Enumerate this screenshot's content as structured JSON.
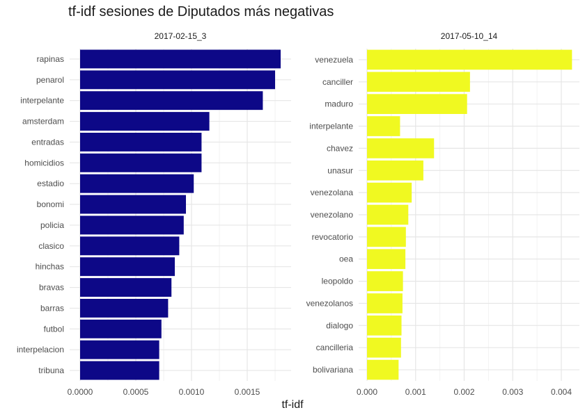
{
  "chart_data": {
    "type": "bar",
    "orientation": "horizontal",
    "title": "tf-idf sesiones de Diputados más negativas",
    "xlabel": "tf-idf",
    "ylabel": "",
    "grid": true,
    "panels": [
      {
        "name": "2017-02-15_3",
        "color": "#0D0887",
        "xlim": [
          0,
          0.0019
        ],
        "ticks": [
          "0.0000",
          "0.0005",
          "0.0010",
          "0.0015"
        ],
        "tick_values": [
          0,
          0.0005,
          0.001,
          0.0015
        ],
        "categories": [
          "rapinas",
          "penarol",
          "interpelante",
          "amsterdam",
          "entradas",
          "homicidios",
          "estadio",
          "bonomi",
          "policia",
          "clasico",
          "hinchas",
          "bravas",
          "barras",
          "futbol",
          "interpelacion",
          "tribuna"
        ],
        "values": [
          0.0018,
          0.00175,
          0.00164,
          0.00116,
          0.00109,
          0.00109,
          0.00102,
          0.00095,
          0.00093,
          0.00089,
          0.00085,
          0.00082,
          0.00079,
          0.00073,
          0.00071,
          0.00071
        ]
      },
      {
        "name": "2017-05-10_14",
        "color": "#F0F921",
        "xlim": [
          0,
          0.0044
        ],
        "ticks": [
          "0.000",
          "0.001",
          "0.002",
          "0.003",
          "0.004"
        ],
        "tick_values": [
          0,
          0.001,
          0.002,
          0.003,
          0.004
        ],
        "categories": [
          "venezuela",
          "canciller",
          "maduro",
          "interpelante",
          "chavez",
          "unasur",
          "venezolana",
          "venezolano",
          "revocatorio",
          "oea",
          "leopoldo",
          "venezolanos",
          "dialogo",
          "cancilleria",
          "bolivariana"
        ],
        "values": [
          0.00422,
          0.00212,
          0.00206,
          0.00068,
          0.00138,
          0.00116,
          0.00092,
          0.00085,
          0.0008,
          0.00079,
          0.00074,
          0.00073,
          0.00071,
          0.0007,
          0.00065
        ]
      }
    ]
  }
}
